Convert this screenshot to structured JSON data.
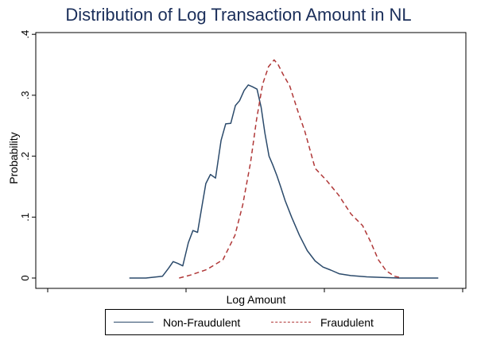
{
  "chart_data": {
    "type": "line",
    "title": "Distribution of Log Transaction Amount in NL",
    "xlabel": "Log Amount",
    "ylabel": "Probability",
    "ylim": [
      0,
      0.4
    ],
    "yticks": [
      0,
      0.1,
      0.2,
      0.3,
      0.4
    ],
    "ytick_labels": [
      "0",
      ".1",
      ".2",
      ".3",
      ".4"
    ],
    "xlim": [
      0,
      9
    ],
    "xticks": [
      0,
      3,
      6,
      9
    ],
    "xtick_labels": [
      "",
      "",
      "",
      ""
    ],
    "grid": false,
    "legend_position": "bottom",
    "series": [
      {
        "name": "Non-Fraudulent",
        "color": "#2b4a6b",
        "dash": "solid",
        "x": [
          1.77,
          2.13,
          2.49,
          2.62,
          2.72,
          2.82,
          2.93,
          3.05,
          3.15,
          3.25,
          3.35,
          3.43,
          3.53,
          3.64,
          3.76,
          3.86,
          3.97,
          4.07,
          4.16,
          4.26,
          4.35,
          4.44,
          4.54,
          4.63,
          4.71,
          4.8,
          4.88,
          4.97,
          5.06,
          5.15,
          5.29,
          5.46,
          5.63,
          5.8,
          5.97,
          6.14,
          6.32,
          6.57,
          6.92,
          7.26,
          7.61,
          7.95,
          8.47
        ],
        "y": [
          0.0,
          0.0,
          0.003,
          0.016,
          0.027,
          0.024,
          0.02,
          0.058,
          0.078,
          0.075,
          0.12,
          0.155,
          0.17,
          0.164,
          0.226,
          0.253,
          0.254,
          0.283,
          0.291,
          0.308,
          0.317,
          0.314,
          0.31,
          0.28,
          0.238,
          0.2,
          0.186,
          0.168,
          0.148,
          0.127,
          0.1,
          0.07,
          0.045,
          0.028,
          0.018,
          0.013,
          0.007,
          0.004,
          0.002,
          0.001,
          0.0,
          0.0,
          0.0
        ]
      },
      {
        "name": "Fraudulent",
        "color": "#b03838",
        "dash": "dashed",
        "x": [
          2.85,
          3.1,
          3.45,
          3.8,
          4.06,
          4.23,
          4.4,
          4.53,
          4.66,
          4.79,
          4.91,
          5.0,
          5.1,
          5.25,
          5.42,
          5.58,
          5.8,
          6.05,
          6.31,
          6.58,
          6.83,
          7.0,
          7.17,
          7.34,
          7.52,
          7.69
        ],
        "y": [
          0.0,
          0.005,
          0.014,
          0.03,
          0.07,
          0.12,
          0.19,
          0.26,
          0.318,
          0.347,
          0.358,
          0.35,
          0.335,
          0.315,
          0.275,
          0.24,
          0.18,
          0.16,
          0.136,
          0.105,
          0.086,
          0.06,
          0.03,
          0.012,
          0.003,
          0.0
        ]
      }
    ]
  }
}
